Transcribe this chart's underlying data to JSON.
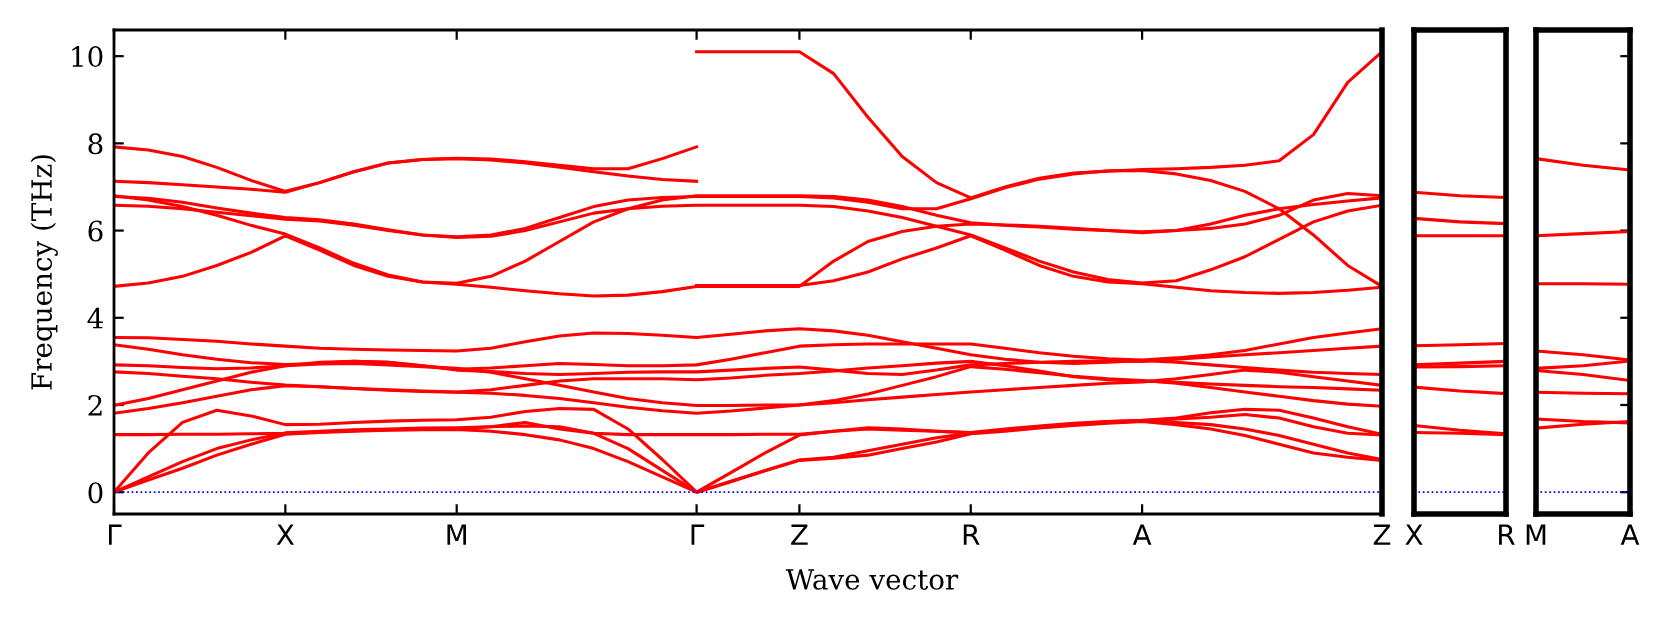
{
  "chart_data": [
    {
      "type": "line",
      "xlabel": "Wave vector",
      "ylabel": "Frequency (THz)",
      "ylim": [
        -0.5,
        10.6
      ],
      "categories": [
        "Γ",
        null,
        null,
        null,
        null,
        "X",
        null,
        null,
        null,
        null,
        "M",
        null,
        null,
        null,
        null,
        null,
        null,
        "Γ",
        null,
        null,
        "Z",
        null,
        null,
        null,
        null,
        "R",
        null,
        null,
        null,
        null,
        "A",
        null,
        null,
        null,
        null,
        null,
        null,
        "Z"
      ],
      "yticks": [
        0,
        2,
        4,
        6,
        8,
        10
      ],
      "ref_lines": [
        {
          "axis": "y",
          "value": 0,
          "color": "#0000ff",
          "line_style": "dotted"
        }
      ],
      "series": [
        {
          "color": "#ff0000",
          "values": [
            7.92,
            7.85,
            7.7,
            7.45,
            7.15,
            6.9,
            7.1,
            7.35,
            7.55,
            7.63,
            7.66,
            7.64,
            7.58,
            7.5,
            7.42,
            7.42,
            7.65,
            7.92,
            null,
            null,
            null,
            null,
            null,
            null,
            null,
            null,
            null,
            null,
            null,
            null,
            null,
            null,
            null,
            null,
            null,
            null,
            null,
            null
          ]
        },
        {
          "color": "#ff0000",
          "values": [
            7.13,
            7.1,
            7.05,
            7.0,
            6.95,
            6.88,
            7.1,
            7.35,
            7.55,
            7.63,
            7.65,
            7.62,
            7.55,
            7.45,
            7.35,
            7.25,
            7.17,
            7.13,
            null,
            null,
            null,
            null,
            null,
            null,
            null,
            null,
            null,
            null,
            null,
            null,
            null,
            null,
            null,
            null,
            null,
            null,
            null,
            null
          ]
        },
        {
          "color": "#ff0000",
          "values": [
            6.78,
            6.74,
            6.65,
            6.52,
            6.4,
            6.3,
            6.25,
            6.15,
            6.02,
            5.9,
            5.86,
            5.9,
            6.05,
            6.3,
            6.55,
            6.7,
            6.76,
            6.78,
            6.78,
            6.78,
            6.78,
            6.75,
            6.65,
            6.5,
            6.5,
            6.73,
            6.98,
            7.18,
            7.3,
            7.37,
            7.38,
            7.3,
            7.15,
            6.9,
            6.5,
            5.9,
            5.2,
            4.72
          ]
        },
        {
          "color": "#ff0000",
          "values": [
            null,
            null,
            null,
            null,
            null,
            null,
            null,
            null,
            null,
            null,
            null,
            null,
            null,
            null,
            null,
            null,
            null,
            10.1,
            10.1,
            10.1,
            10.1,
            9.6,
            8.6,
            7.7,
            7.1,
            6.75,
            7.0,
            7.2,
            7.32,
            7.36,
            7.4,
            7.42,
            7.45,
            7.5,
            7.6,
            8.2,
            9.4,
            10.1
          ]
        },
        {
          "color": "#ff0000",
          "values": [
            6.58,
            6.56,
            6.5,
            6.42,
            6.34,
            6.26,
            6.22,
            6.12,
            6.0,
            5.9,
            5.84,
            5.87,
            6.0,
            6.2,
            6.4,
            6.5,
            6.56,
            6.58,
            6.58,
            6.58,
            6.58,
            6.55,
            6.45,
            6.3,
            6.1,
            5.9,
            5.6,
            5.3,
            5.05,
            4.88,
            4.8,
            4.85,
            5.1,
            5.4,
            5.8,
            6.2,
            6.45,
            6.58
          ]
        },
        {
          "color": "#ff0000",
          "values": [
            6.8,
            6.7,
            6.55,
            6.35,
            6.12,
            5.92,
            5.6,
            5.25,
            4.98,
            4.82,
            4.79,
            4.95,
            5.3,
            5.75,
            6.2,
            6.5,
            6.7,
            6.8,
            6.8,
            6.8,
            6.8,
            6.78,
            6.7,
            6.55,
            6.35,
            6.18,
            6.12,
            6.08,
            6.03,
            6.0,
            5.97,
            6.0,
            6.05,
            6.15,
            6.35,
            6.7,
            6.85,
            6.8
          ]
        },
        {
          "color": "#ff0000",
          "values": [
            4.72,
            4.8,
            4.95,
            5.2,
            5.5,
            5.88,
            5.55,
            5.2,
            4.95,
            4.82,
            4.77,
            4.7,
            4.62,
            4.55,
            4.5,
            4.52,
            4.6,
            4.72,
            4.72,
            4.72,
            4.72,
            5.3,
            5.75,
            5.98,
            6.1,
            6.15,
            6.13,
            6.1,
            6.05,
            6.0,
            5.95,
            6.0,
            6.15,
            6.35,
            6.5,
            6.6,
            6.68,
            6.75
          ]
        },
        {
          "color": "#ff0000",
          "values": [
            null,
            null,
            null,
            null,
            null,
            null,
            null,
            null,
            null,
            null,
            null,
            null,
            null,
            null,
            null,
            null,
            null,
            4.74,
            4.74,
            4.74,
            4.74,
            4.85,
            5.05,
            5.35,
            5.6,
            5.88,
            5.55,
            5.2,
            4.95,
            4.82,
            4.78,
            4.7,
            4.62,
            4.58,
            4.56,
            4.58,
            4.63,
            4.7
          ]
        },
        {
          "color": "#ff0000",
          "values": [
            3.55,
            3.54,
            3.5,
            3.46,
            3.4,
            3.35,
            3.3,
            3.28,
            3.26,
            3.25,
            3.24,
            3.3,
            3.45,
            3.58,
            3.65,
            3.64,
            3.6,
            3.55,
            3.62,
            3.7,
            3.75,
            3.7,
            3.6,
            3.45,
            3.3,
            3.15,
            3.05,
            2.98,
            2.95,
            2.98,
            3.02,
            2.98,
            2.92,
            2.86,
            2.8,
            2.75,
            2.72,
            2.7
          ]
        },
        {
          "color": "#ff0000",
          "values": [
            3.38,
            3.28,
            3.15,
            3.05,
            2.97,
            2.93,
            2.95,
            3.0,
            2.98,
            2.9,
            2.82,
            2.85,
            2.9,
            2.95,
            2.93,
            2.9,
            2.9,
            2.92,
            3.05,
            3.2,
            3.35,
            3.38,
            3.4,
            3.4,
            3.4,
            3.4,
            3.3,
            3.2,
            3.12,
            3.06,
            3.03,
            3.08,
            3.15,
            3.25,
            3.4,
            3.55,
            3.65,
            3.75
          ]
        },
        {
          "color": "#ff0000",
          "values": [
            2.92,
            2.9,
            2.86,
            2.83,
            2.85,
            2.9,
            2.98,
            3.0,
            2.98,
            2.9,
            2.8,
            2.77,
            2.72,
            2.7,
            2.72,
            2.75,
            2.76,
            2.76,
            2.8,
            2.84,
            2.87,
            2.8,
            2.72,
            2.7,
            2.8,
            2.92,
            2.95,
            2.98,
            3.0,
            3.01,
            3.0,
            3.05,
            3.1,
            3.15,
            3.2,
            3.25,
            3.3,
            3.35
          ]
        },
        {
          "color": "#ff0000",
          "values": [
            2.76,
            2.72,
            2.66,
            2.6,
            2.52,
            2.46,
            2.42,
            2.38,
            2.35,
            2.32,
            2.3,
            2.35,
            2.45,
            2.55,
            2.6,
            2.6,
            2.6,
            2.58,
            2.62,
            2.68,
            2.72,
            2.78,
            2.85,
            2.9,
            2.96,
            3.0,
            2.9,
            2.78,
            2.65,
            2.58,
            2.55,
            2.52,
            2.48,
            2.45,
            2.42,
            2.4,
            2.37,
            2.34
          ]
        },
        {
          "color": "#ff0000",
          "values": [
            1.99,
            2.15,
            2.35,
            2.55,
            2.75,
            2.9,
            2.94,
            2.95,
            2.92,
            2.88,
            2.84,
            2.75,
            2.6,
            2.45,
            2.3,
            2.15,
            2.05,
            1.99,
            1.99,
            2.0,
            2.0,
            2.1,
            2.25,
            2.45,
            2.65,
            2.88,
            2.82,
            2.74,
            2.66,
            2.6,
            2.56,
            2.5,
            2.4,
            2.3,
            2.2,
            2.1,
            2.02,
            1.97
          ]
        },
        {
          "color": "#ff0000",
          "values": [
            1.81,
            1.92,
            2.05,
            2.2,
            2.35,
            2.44,
            2.42,
            2.38,
            2.34,
            2.31,
            2.29,
            2.27,
            2.22,
            2.15,
            2.05,
            1.95,
            1.87,
            1.81,
            1.86,
            1.93,
            2.0,
            2.05,
            2.12,
            2.18,
            2.24,
            2.3,
            2.35,
            2.4,
            2.45,
            2.5,
            2.53,
            2.6,
            2.7,
            2.8,
            2.75,
            2.65,
            2.55,
            2.45
          ]
        },
        {
          "color": "#ff0000",
          "values": [
            1.32,
            1.32,
            1.33,
            1.33,
            1.34,
            1.35,
            1.38,
            1.41,
            1.43,
            1.44,
            1.45,
            1.5,
            1.6,
            1.45,
            1.35,
            1.32,
            1.32,
            1.32,
            1.32,
            1.33,
            1.33,
            1.4,
            1.48,
            1.45,
            1.4,
            1.36,
            1.42,
            1.5,
            1.56,
            1.62,
            1.65,
            1.7,
            1.82,
            1.9,
            1.88,
            1.7,
            1.5,
            1.33
          ]
        },
        {
          "color": "#ff0000",
          "values": [
            0,
            0.9,
            1.6,
            1.88,
            1.75,
            1.55,
            1.56,
            1.6,
            1.63,
            1.65,
            1.66,
            1.72,
            1.85,
            1.92,
            1.9,
            1.45,
            0.75,
            0,
            0.45,
            0.9,
            1.31,
            1.4,
            1.45,
            1.42,
            1.4,
            1.37,
            1.45,
            1.52,
            1.58,
            1.62,
            1.64,
            1.6,
            1.55,
            1.45,
            1.3,
            1.1,
            0.9,
            0.75
          ]
        },
        {
          "color": "#ff0000",
          "values": [
            0,
            0.35,
            0.7,
            1.0,
            1.2,
            1.36,
            1.4,
            1.43,
            1.45,
            1.47,
            1.48,
            1.5,
            1.52,
            1.5,
            1.35,
            1.0,
            0.5,
            0,
            0.25,
            0.5,
            0.74,
            0.8,
            0.95,
            1.1,
            1.25,
            1.35,
            1.42,
            1.5,
            1.56,
            1.6,
            1.63,
            1.68,
            1.72,
            1.78,
            1.7,
            1.5,
            1.35,
            1.31
          ]
        },
        {
          "color": "#ff0000",
          "values": [
            0,
            0.28,
            0.55,
            0.85,
            1.1,
            1.33,
            1.37,
            1.4,
            1.42,
            1.43,
            1.44,
            1.4,
            1.32,
            1.2,
            1.0,
            0.7,
            0.35,
            0,
            0.24,
            0.49,
            0.73,
            0.78,
            0.85,
            1.0,
            1.15,
            1.34,
            1.4,
            1.47,
            1.53,
            1.58,
            1.62,
            1.55,
            1.45,
            1.3,
            1.1,
            0.9,
            0.8,
            0.73
          ]
        }
      ]
    },
    {
      "type": "line",
      "ylim": [
        -0.5,
        10.6
      ],
      "tick_labels": "x",
      "categories": [
        "X",
        null,
        "R"
      ],
      "ref_lines": [
        {
          "axis": "y",
          "value": 0,
          "color": "#0000ff",
          "line_style": "dotted"
        }
      ],
      "series": [
        {
          "color": "#ff0000",
          "values": [
            6.88,
            6.8,
            6.76
          ]
        },
        {
          "color": "#ff0000",
          "values": [
            6.28,
            6.2,
            6.16
          ]
        },
        {
          "color": "#ff0000",
          "values": [
            5.88,
            5.88,
            5.88
          ]
        },
        {
          "color": "#ff0000",
          "values": [
            3.36,
            3.38,
            3.41
          ]
        },
        {
          "color": "#ff0000",
          "values": [
            2.92,
            2.96,
            3.0
          ]
        },
        {
          "color": "#ff0000",
          "values": [
            2.87,
            2.88,
            2.9
          ]
        },
        {
          "color": "#ff0000",
          "values": [
            2.41,
            2.32,
            2.26
          ]
        },
        {
          "color": "#ff0000",
          "values": [
            1.53,
            1.42,
            1.34
          ]
        },
        {
          "color": "#ff0000",
          "values": [
            1.37,
            1.35,
            1.32
          ]
        }
      ]
    },
    {
      "type": "line",
      "ylim": [
        -0.5,
        10.6
      ],
      "tick_labels": "x",
      "categories": [
        "M",
        null,
        "A"
      ],
      "yticks": [
        0,
        2,
        4,
        6,
        8,
        10
      ],
      "ref_lines": [
        {
          "axis": "y",
          "value": 0,
          "color": "#0000ff",
          "line_style": "dotted"
        }
      ],
      "series": [
        {
          "color": "#ff0000",
          "values": [
            7.65,
            7.5,
            7.39
          ]
        },
        {
          "color": "#ff0000",
          "values": [
            5.88,
            5.93,
            5.98
          ]
        },
        {
          "color": "#ff0000",
          "values": [
            4.78,
            4.78,
            4.77
          ]
        },
        {
          "color": "#ff0000",
          "values": [
            3.24,
            3.15,
            3.03
          ]
        },
        {
          "color": "#ff0000",
          "values": [
            2.84,
            2.9,
            3.01
          ]
        },
        {
          "color": "#ff0000",
          "values": [
            2.79,
            2.7,
            2.56
          ]
        },
        {
          "color": "#ff0000",
          "values": [
            2.29,
            2.27,
            2.26
          ]
        },
        {
          "color": "#ff0000",
          "values": [
            1.68,
            1.62,
            1.59
          ]
        },
        {
          "color": "#ff0000",
          "values": [
            1.47,
            1.56,
            1.62
          ]
        }
      ]
    }
  ]
}
